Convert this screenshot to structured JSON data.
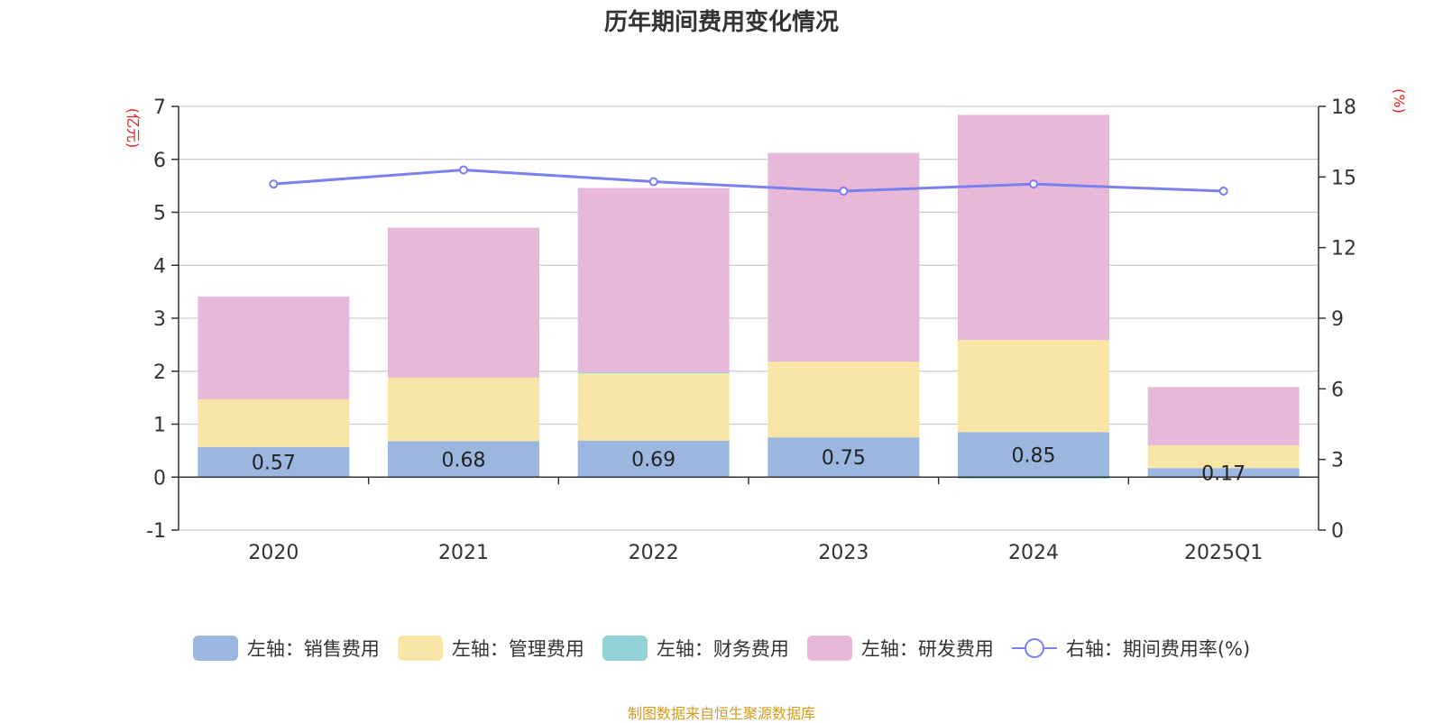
{
  "chart_data": {
    "type": "bar",
    "title": "历年期间费用变化情况",
    "categories": [
      "2020",
      "2021",
      "2022",
      "2023",
      "2024",
      "2025Q1"
    ],
    "left_axis": {
      "label": "(亿元)",
      "min": -1,
      "max": 7,
      "step": 1,
      "ticks": [
        "-1",
        "0",
        "1",
        "2",
        "3",
        "4",
        "5",
        "6",
        "7"
      ]
    },
    "right_axis": {
      "label": "(%)",
      "min": 0,
      "max": 18,
      "step": 3,
      "ticks": [
        "0",
        "3",
        "6",
        "9",
        "12",
        "15",
        "18"
      ]
    },
    "series": [
      {
        "name": "左轴：销售费用",
        "axis": "left",
        "stack": true,
        "color": "#9bb7e0",
        "values": [
          0.57,
          0.68,
          0.69,
          0.75,
          0.85,
          0.17
        ],
        "labels": [
          "0.57",
          "0.68",
          "0.69",
          "0.75",
          "0.85",
          "0.17"
        ]
      },
      {
        "name": "左轴：管理费用",
        "axis": "left",
        "stack": true,
        "color": "#f7e6a6",
        "values": [
          0.9,
          1.2,
          1.27,
          1.43,
          1.74,
          0.43
        ]
      },
      {
        "name": "左轴：财务费用",
        "axis": "left",
        "stack": true,
        "color": "#94d3d5",
        "values": [
          0.0,
          0.0,
          0.02,
          0.0,
          -0.03,
          0.0
        ]
      },
      {
        "name": "左轴：研发费用",
        "axis": "left",
        "stack": true,
        "color": "#e8b8d8",
        "values": [
          1.94,
          2.83,
          3.48,
          3.94,
          4.25,
          1.1
        ]
      },
      {
        "name": "右轴：期间费用率(%)",
        "axis": "right",
        "type": "line",
        "color": "#7b7ff0",
        "values": [
          14.7,
          15.3,
          14.8,
          14.4,
          14.7,
          14.4
        ]
      }
    ],
    "grid": true,
    "legend_position": "bottom"
  },
  "source": "制图数据来自恒生聚源数据库",
  "colors": {
    "axis_label": "#e02020",
    "grid": "#cccccc",
    "text": "#333333"
  }
}
